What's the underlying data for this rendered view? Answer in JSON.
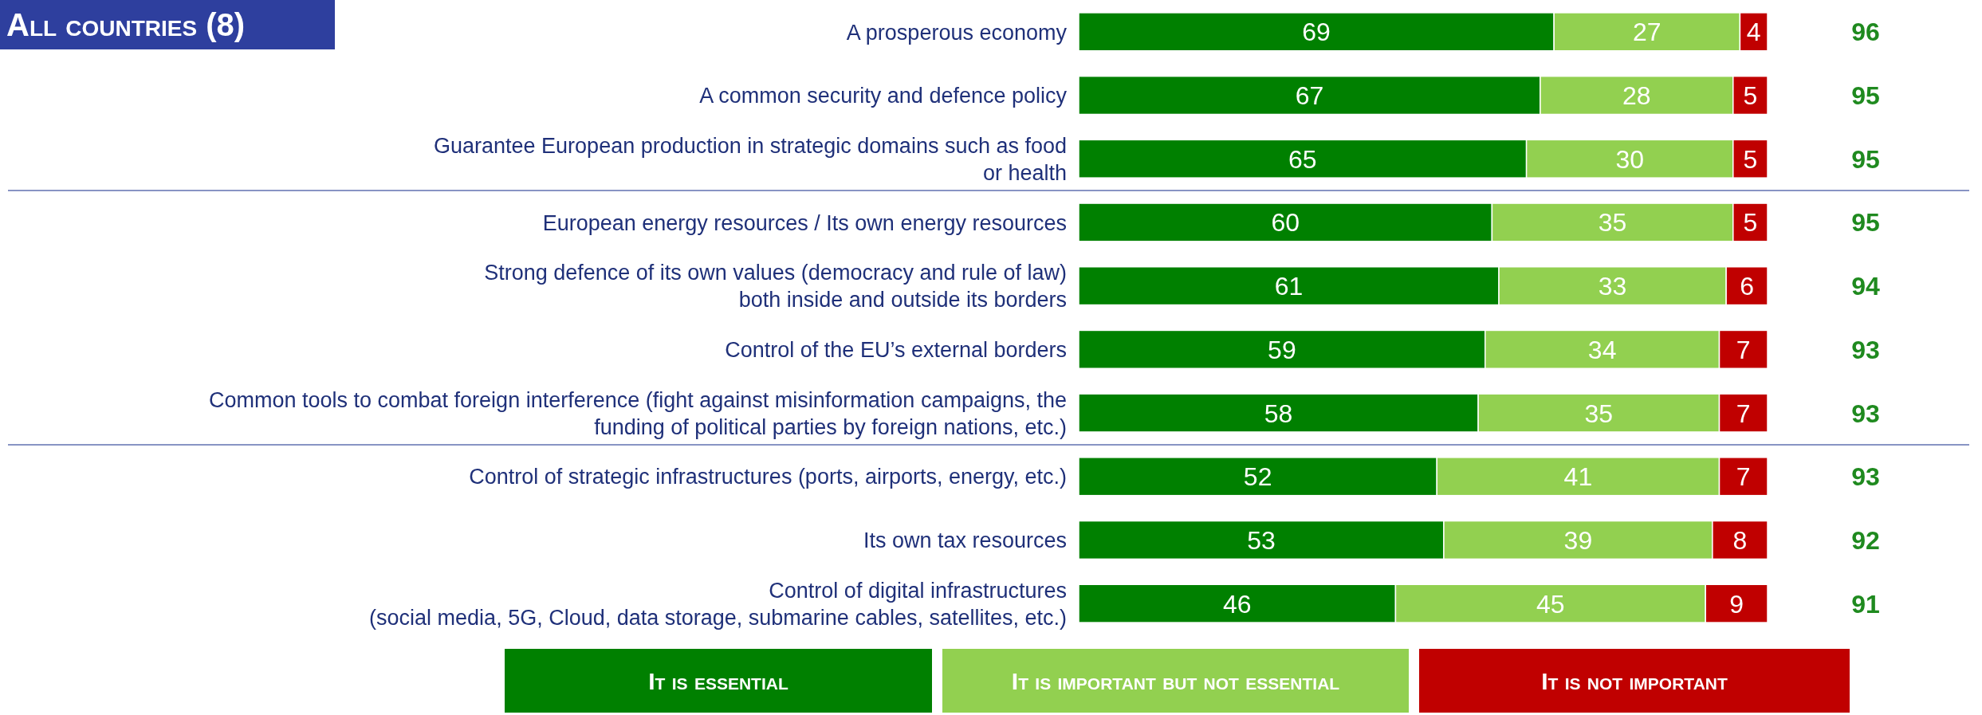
{
  "chart_data": {
    "type": "bar",
    "orientation": "horizontal",
    "stacked": true,
    "title": "All countries (8)",
    "categories": [
      "A prosperous economy",
      "A common security and defence policy",
      "Guarantee European production in strategic domains such as food\nor health",
      "European energy resources / Its own energy resources",
      "Strong defence of its own values (democracy and rule of law)\nboth inside and outside its borders",
      "Control of the EU’s external borders",
      "Common tools to combat foreign interference (fight against misinformation campaigns, the\nfunding of political parties by foreign nations, etc.)",
      "Control of strategic infrastructures (ports, airports, energy, etc.)",
      "Its own tax resources",
      "Control of digital infrastructures\n(social media, 5G, Cloud, data storage, submarine cables, satellites, etc.)"
    ],
    "series": [
      {
        "name": "It is essential",
        "color": "#008000",
        "values": [
          69,
          67,
          65,
          60,
          61,
          59,
          58,
          52,
          53,
          46
        ]
      },
      {
        "name": "It is important but not essential",
        "color": "#92d050",
        "values": [
          27,
          28,
          30,
          35,
          33,
          34,
          35,
          41,
          39,
          45
        ]
      },
      {
        "name": "It is not important",
        "color": "#c00000",
        "values": [
          4,
          5,
          5,
          5,
          6,
          7,
          7,
          7,
          8,
          9
        ]
      }
    ],
    "data_labels": true,
    "annotations": [
      "96",
      "95",
      "95",
      "95",
      "94",
      "93",
      "93",
      "93",
      "92",
      "91"
    ],
    "legend": "bottom"
  }
}
